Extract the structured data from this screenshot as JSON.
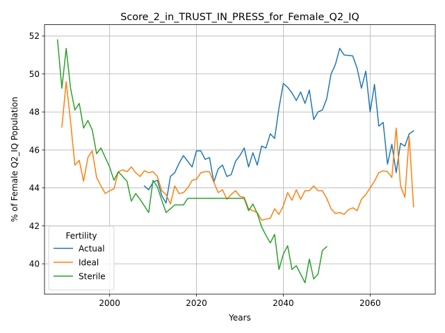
{
  "chart_data": {
    "type": "line",
    "title": "Score_2_in_TRUST_IN_PRESS_for_Female_Q2_IQ",
    "xlabel": "Years",
    "ylabel": "% of Female Q2_IQ Population",
    "xlim": [
      1985,
      2075
    ],
    "ylim": [
      38.4,
      52.6
    ],
    "xticks": [
      2000,
      2020,
      2040,
      2060
    ],
    "yticks": [
      40,
      42,
      44,
      46,
      48,
      50,
      52
    ],
    "grid": true,
    "legend": {
      "title": "Fertility",
      "placement": "lower-left"
    },
    "series": [
      {
        "name": "Actual",
        "color": "#1f77b4",
        "x": [
          2008,
          2009,
          2010,
          2011,
          2012,
          2013,
          2014,
          2015,
          2016,
          2017,
          2018,
          2019,
          2020,
          2021,
          2022,
          2023,
          2024,
          2025,
          2026,
          2027,
          2028,
          2029,
          2030,
          2031,
          2032,
          2033,
          2034,
          2035,
          2036,
          2037,
          2038,
          2039,
          2040,
          2041,
          2042,
          2043,
          2044,
          2045,
          2046,
          2047,
          2048,
          2049,
          2050,
          2051,
          2052,
          2053,
          2054,
          2055,
          2056,
          2057,
          2058,
          2059,
          2060,
          2061,
          2062,
          2063,
          2064,
          2065,
          2066,
          2067,
          2068,
          2069,
          2070
        ],
        "y": [
          44.1,
          43.9,
          44.3,
          44.4,
          43.6,
          43.2,
          44.6,
          44.8,
          45.3,
          45.7,
          45.4,
          45.1,
          45.95,
          45.95,
          45.5,
          45.6,
          44.3,
          45.0,
          45.2,
          44.6,
          44.7,
          45.4,
          45.7,
          46.1,
          45.1,
          45.85,
          45.2,
          46.2,
          46.1,
          46.85,
          46.6,
          48.2,
          49.5,
          49.3,
          49.0,
          48.6,
          49.05,
          48.45,
          49.15,
          47.6,
          48.0,
          48.1,
          48.7,
          50.0,
          50.5,
          51.35,
          51.0,
          50.98,
          50.95,
          50.3,
          49.25,
          50.15,
          48.0,
          49.45,
          47.25,
          47.45,
          45.25,
          46.3,
          44.8,
          46.35,
          46.2,
          46.85,
          47.0
        ]
      },
      {
        "name": "Ideal",
        "color": "#ff7f0e",
        "x": [
          1989,
          1990,
          1991,
          1992,
          1993,
          1994,
          1995,
          1996,
          1997,
          1998,
          1999,
          2000,
          2001,
          2002,
          2003,
          2004,
          2005,
          2006,
          2007,
          2008,
          2009,
          2010,
          2011,
          2012,
          2013,
          2014,
          2015,
          2016,
          2017,
          2018,
          2019,
          2020,
          2021,
          2022,
          2023,
          2024,
          2025,
          2026,
          2027,
          2028,
          2029,
          2030,
          2031,
          2032,
          2033,
          2034,
          2035,
          2036,
          2037,
          2038,
          2039,
          2040,
          2041,
          2042,
          2043,
          2044,
          2045,
          2046,
          2047,
          2048,
          2049,
          2050,
          2051,
          2052,
          2053,
          2054,
          2055,
          2056,
          2057,
          2058,
          2059,
          2060,
          2061,
          2062,
          2063,
          2064,
          2065,
          2066,
          2067,
          2068,
          2069,
          2070
        ],
        "y": [
          47.2,
          49.6,
          47.5,
          45.2,
          45.45,
          44.35,
          45.6,
          45.95,
          44.55,
          44.1,
          43.7,
          43.85,
          43.95,
          44.85,
          44.95,
          44.85,
          45.1,
          44.8,
          44.6,
          44.9,
          44.8,
          44.85,
          44.6,
          43.85,
          43.65,
          43.15,
          44.1,
          43.7,
          43.75,
          44.0,
          44.4,
          44.45,
          44.8,
          44.85,
          44.85,
          44.3,
          43.75,
          43.9,
          43.4,
          43.65,
          43.85,
          43.55,
          43.5,
          42.9,
          42.8,
          42.7,
          42.3,
          42.35,
          42.4,
          42.9,
          42.6,
          43.05,
          43.75,
          43.35,
          43.9,
          43.4,
          43.85,
          43.85,
          44.1,
          43.85,
          43.85,
          43.45,
          42.9,
          42.65,
          42.7,
          42.6,
          42.85,
          42.95,
          42.8,
          43.4,
          43.65,
          44.0,
          44.35,
          44.8,
          44.9,
          44.85,
          44.55,
          47.15,
          44.1,
          43.5,
          46.7,
          43.0
        ]
      },
      {
        "name": "Sterile",
        "color": "#2ca02c",
        "x": [
          1988,
          1989,
          1990,
          1991,
          1992,
          1993,
          1994,
          1995,
          1996,
          1997,
          1998,
          1999,
          2000,
          2001,
          2002,
          2003,
          2004,
          2005,
          2006,
          2007,
          2008,
          2009,
          2010,
          2011,
          2012,
          2013,
          2014,
          2015,
          2016,
          2017,
          2018,
          2019,
          2020,
          2021,
          2022,
          2023,
          2024,
          2025,
          2026,
          2027,
          2028,
          2029,
          2030,
          2031,
          2032,
          2033,
          2034,
          2035,
          2036,
          2037,
          2038,
          2039,
          2040,
          2041,
          2042,
          2043,
          2044,
          2045,
          2046,
          2047,
          2048,
          2049,
          2050
        ],
        "y": [
          51.8,
          49.25,
          51.35,
          49.25,
          48.1,
          48.45,
          47.15,
          47.55,
          47.05,
          45.8,
          46.1,
          45.6,
          45.1,
          44.4,
          44.85,
          44.6,
          44.35,
          43.3,
          43.7,
          43.4,
          43.05,
          42.7,
          44.4,
          44.05,
          43.35,
          42.7,
          42.9,
          43.1,
          43.1,
          43.1,
          43.45,
          43.45,
          43.45,
          43.45,
          43.45,
          43.45,
          43.45,
          43.45,
          43.45,
          43.45,
          43.45,
          43.45,
          43.45,
          43.45,
          42.8,
          43.15,
          42.65,
          41.95,
          41.5,
          41.1,
          41.55,
          39.7,
          40.5,
          40.95,
          39.7,
          39.9,
          39.45,
          39.0,
          40.25,
          39.2,
          39.45,
          40.7,
          40.9
        ]
      }
    ]
  }
}
